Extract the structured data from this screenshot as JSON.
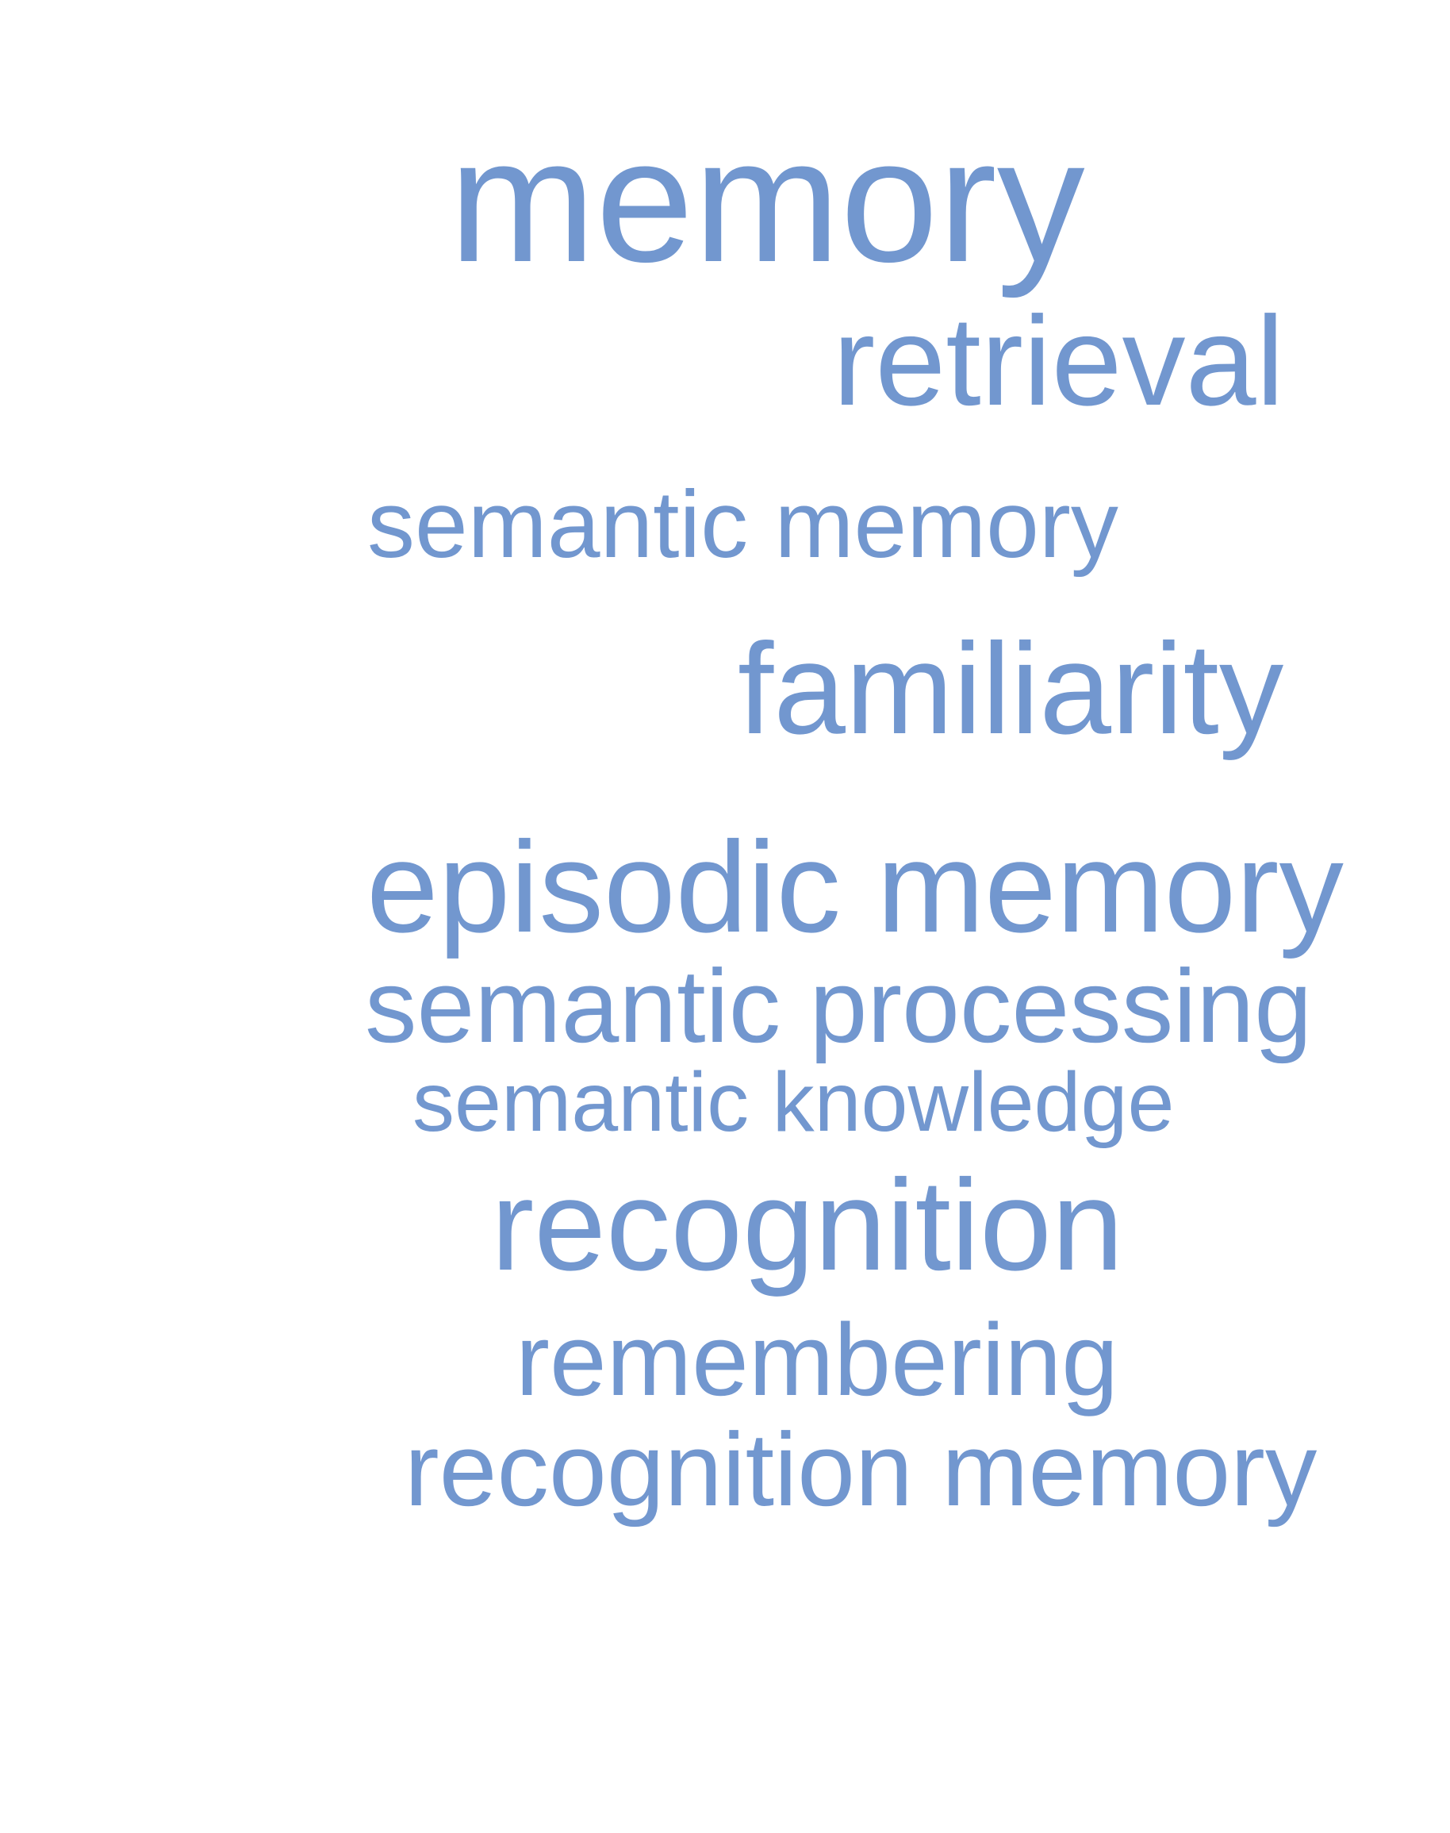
{
  "color": "#7297cf",
  "words": [
    "memory",
    "retrieval",
    "semantic memory",
    "familiarity",
    "episodic memory",
    "semantic processing",
    "semantic knowledge",
    "recognition",
    "remembering",
    "recognition memory"
  ]
}
